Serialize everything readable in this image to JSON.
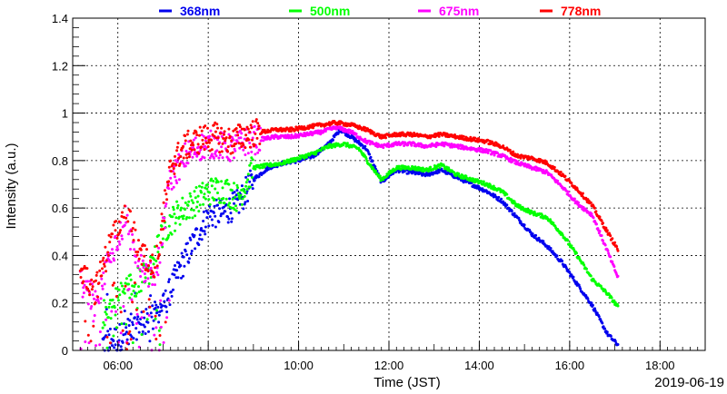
{
  "chart_data": {
    "type": "scatter",
    "xlabel": "Time (JST)",
    "ylabel": "Intensity (a.u.)",
    "date_label": "2019-06-19",
    "xlim": [
      "05:00",
      "19:00"
    ],
    "ylim": [
      0,
      1.4
    ],
    "x_ticks": [
      "06:00",
      "08:00",
      "10:00",
      "12:00",
      "14:00",
      "16:00",
      "18:00"
    ],
    "y_ticks": [
      "0",
      "0.2",
      "0.4",
      "0.6",
      "0.8",
      "1",
      "1.2",
      "1.4"
    ],
    "grid": true,
    "legend_position": "top",
    "series": [
      {
        "name": "368nm",
        "color": "#0000ee",
        "points": [
          [
            "05:40",
            0.03
          ],
          [
            "06:00",
            0.05
          ],
          [
            "06:20",
            0.1
          ],
          [
            "06:40",
            0.12
          ],
          [
            "07:00",
            0.18
          ],
          [
            "07:20",
            0.33
          ],
          [
            "07:40",
            0.45
          ],
          [
            "08:00",
            0.57
          ],
          [
            "08:20",
            0.58
          ],
          [
            "08:40",
            0.62
          ],
          [
            "09:00",
            0.72
          ],
          [
            "09:20",
            0.77
          ],
          [
            "09:40",
            0.79
          ],
          [
            "10:00",
            0.8
          ],
          [
            "10:20",
            0.82
          ],
          [
            "10:40",
            0.87
          ],
          [
            "10:55",
            0.93
          ],
          [
            "11:10",
            0.9
          ],
          [
            "11:30",
            0.85
          ],
          [
            "11:50",
            0.71
          ],
          [
            "12:10",
            0.76
          ],
          [
            "12:30",
            0.75
          ],
          [
            "12:50",
            0.74
          ],
          [
            "13:10",
            0.76
          ],
          [
            "13:30",
            0.73
          ],
          [
            "13:50",
            0.7
          ],
          [
            "14:10",
            0.67
          ],
          [
            "14:30",
            0.63
          ],
          [
            "14:50",
            0.56
          ],
          [
            "15:10",
            0.49
          ],
          [
            "15:30",
            0.44
          ],
          [
            "15:50",
            0.37
          ],
          [
            "16:10",
            0.28
          ],
          [
            "16:30",
            0.19
          ],
          [
            "16:50",
            0.07
          ],
          [
            "17:05",
            0.02
          ]
        ]
      },
      {
        "name": "500nm",
        "color": "#00ff00",
        "points": [
          [
            "05:40",
            0.15
          ],
          [
            "06:00",
            0.22
          ],
          [
            "06:20",
            0.28
          ],
          [
            "06:40",
            0.32
          ],
          [
            "07:00",
            0.5
          ],
          [
            "07:20",
            0.58
          ],
          [
            "07:40",
            0.62
          ],
          [
            "08:00",
            0.67
          ],
          [
            "08:20",
            0.68
          ],
          [
            "08:40",
            0.64
          ],
          [
            "09:00",
            0.77
          ],
          [
            "09:20",
            0.78
          ],
          [
            "09:40",
            0.79
          ],
          [
            "10:00",
            0.81
          ],
          [
            "10:20",
            0.83
          ],
          [
            "10:40",
            0.86
          ],
          [
            "11:00",
            0.87
          ],
          [
            "11:20",
            0.85
          ],
          [
            "11:40",
            0.76
          ],
          [
            "11:50",
            0.72
          ],
          [
            "12:10",
            0.77
          ],
          [
            "12:30",
            0.77
          ],
          [
            "12:50",
            0.76
          ],
          [
            "13:10",
            0.78
          ],
          [
            "13:30",
            0.74
          ],
          [
            "13:50",
            0.72
          ],
          [
            "14:10",
            0.7
          ],
          [
            "14:30",
            0.67
          ],
          [
            "14:50",
            0.61
          ],
          [
            "15:10",
            0.58
          ],
          [
            "15:30",
            0.56
          ],
          [
            "15:50",
            0.49
          ],
          [
            "16:10",
            0.4
          ],
          [
            "16:30",
            0.3
          ],
          [
            "16:50",
            0.24
          ],
          [
            "17:05",
            0.18
          ]
        ]
      },
      {
        "name": "675nm",
        "color": "#ff00ff",
        "points": [
          [
            "05:10",
            0.3
          ],
          [
            "05:30",
            0.2
          ],
          [
            "05:50",
            0.4
          ],
          [
            "06:10",
            0.55
          ],
          [
            "06:30",
            0.35
          ],
          [
            "06:50",
            0.3
          ],
          [
            "07:10",
            0.72
          ],
          [
            "07:30",
            0.82
          ],
          [
            "07:50",
            0.86
          ],
          [
            "08:10",
            0.87
          ],
          [
            "08:30",
            0.85
          ],
          [
            "08:50",
            0.88
          ],
          [
            "09:10",
            0.89
          ],
          [
            "09:30",
            0.9
          ],
          [
            "09:50",
            0.9
          ],
          [
            "10:10",
            0.91
          ],
          [
            "10:30",
            0.92
          ],
          [
            "10:50",
            0.94
          ],
          [
            "11:10",
            0.92
          ],
          [
            "11:30",
            0.88
          ],
          [
            "11:50",
            0.86
          ],
          [
            "12:10",
            0.87
          ],
          [
            "12:30",
            0.87
          ],
          [
            "12:50",
            0.86
          ],
          [
            "13:10",
            0.87
          ],
          [
            "13:30",
            0.86
          ],
          [
            "13:50",
            0.85
          ],
          [
            "14:10",
            0.84
          ],
          [
            "14:30",
            0.82
          ],
          [
            "14:50",
            0.79
          ],
          [
            "15:10",
            0.77
          ],
          [
            "15:30",
            0.75
          ],
          [
            "15:50",
            0.69
          ],
          [
            "16:10",
            0.62
          ],
          [
            "16:30",
            0.57
          ],
          [
            "16:50",
            0.42
          ],
          [
            "17:05",
            0.3
          ]
        ]
      },
      {
        "name": "778nm",
        "color": "#ff0000",
        "points": [
          [
            "05:10",
            0.35
          ],
          [
            "05:30",
            0.25
          ],
          [
            "05:50",
            0.45
          ],
          [
            "06:10",
            0.62
          ],
          [
            "06:30",
            0.4
          ],
          [
            "06:50",
            0.35
          ],
          [
            "07:10",
            0.78
          ],
          [
            "07:30",
            0.86
          ],
          [
            "07:50",
            0.89
          ],
          [
            "08:10",
            0.9
          ],
          [
            "08:30",
            0.88
          ],
          [
            "08:50",
            0.91
          ],
          [
            "09:10",
            0.92
          ],
          [
            "09:30",
            0.93
          ],
          [
            "09:50",
            0.93
          ],
          [
            "10:10",
            0.94
          ],
          [
            "10:30",
            0.95
          ],
          [
            "10:50",
            0.96
          ],
          [
            "11:10",
            0.95
          ],
          [
            "11:30",
            0.93
          ],
          [
            "11:50",
            0.9
          ],
          [
            "12:10",
            0.91
          ],
          [
            "12:30",
            0.91
          ],
          [
            "12:50",
            0.9
          ],
          [
            "13:10",
            0.91
          ],
          [
            "13:30",
            0.9
          ],
          [
            "13:50",
            0.89
          ],
          [
            "14:10",
            0.88
          ],
          [
            "14:30",
            0.86
          ],
          [
            "14:50",
            0.82
          ],
          [
            "15:10",
            0.81
          ],
          [
            "15:30",
            0.79
          ],
          [
            "15:50",
            0.74
          ],
          [
            "16:10",
            0.68
          ],
          [
            "16:30",
            0.61
          ],
          [
            "16:50",
            0.5
          ],
          [
            "17:05",
            0.42
          ]
        ]
      }
    ]
  }
}
